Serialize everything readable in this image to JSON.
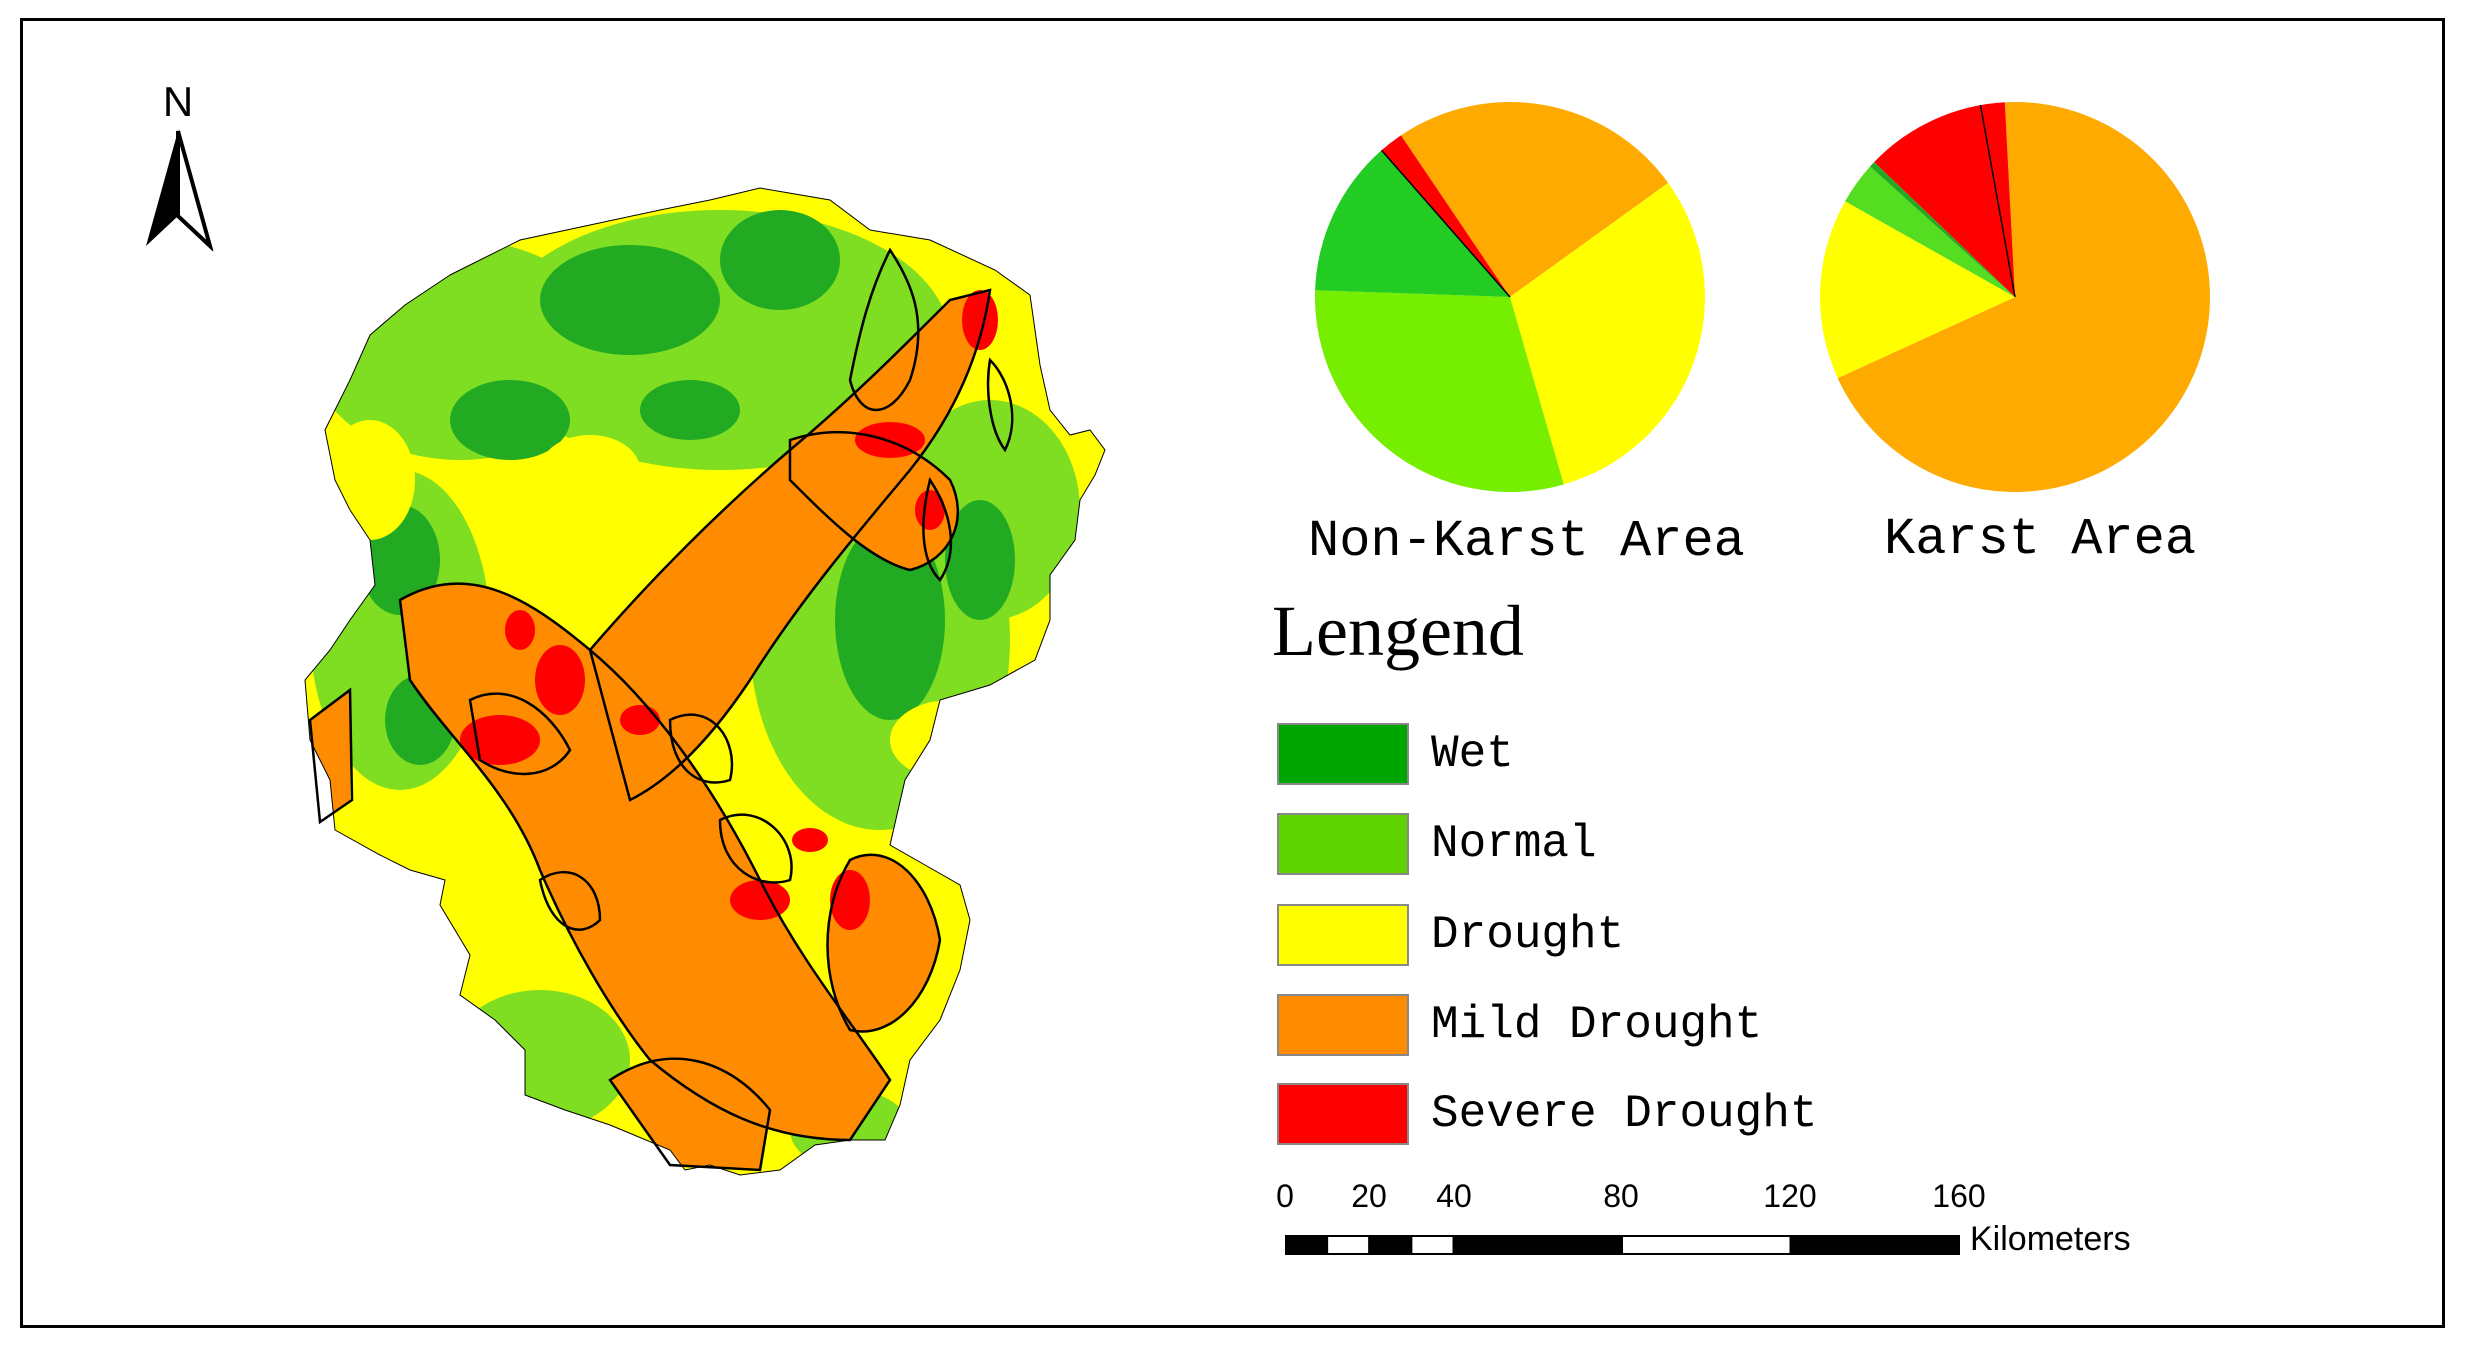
{
  "north_arrow": {
    "letter": "N"
  },
  "pies": [
    {
      "label": "Non-Karst Area",
      "slices": [
        {
          "class": "Mild Drought",
          "color": "#FFAA00",
          "fraction": 0.245
        },
        {
          "class": "Drought",
          "color": "#FFFF00",
          "fraction": 0.305
        },
        {
          "class": "Normal",
          "color": "#76EE00",
          "fraction": 0.3
        },
        {
          "class": "Wet",
          "color": "#22CC22",
          "fraction": 0.13
        },
        {
          "class": "Severe Drought",
          "color": "#FF0000",
          "fraction": 0.02
        }
      ]
    },
    {
      "label": "Karst Area",
      "slices": [
        {
          "class": "Mild Drought",
          "color": "#FFAA00",
          "fraction": 0.69
        },
        {
          "class": "Drought",
          "color": "#FFFF00",
          "fraction": 0.15
        },
        {
          "class": "Normal",
          "color": "#55DD22",
          "fraction": 0.035
        },
        {
          "class": "Wet",
          "color": "#22AA22",
          "fraction": 0.005
        },
        {
          "class": "Severe Drought",
          "color": "#FF0000",
          "fraction": 0.12
        }
      ]
    }
  ],
  "legend": {
    "title": "Lengend",
    "items": [
      {
        "label": "Wet",
        "color": "#00A600"
      },
      {
        "label": "Normal",
        "color": "#5FD300"
      },
      {
        "label": "Drought",
        "color": "#FFFF00"
      },
      {
        "label": "Mild Drought",
        "color": "#FF8C00"
      },
      {
        "label": "Severe Drought",
        "color": "#FF0000"
      }
    ]
  },
  "scale_bar": {
    "ticks": [
      "0",
      "20",
      "40",
      "80",
      "120",
      "160"
    ],
    "tick_values": [
      0,
      20,
      40,
      80,
      120,
      160
    ],
    "units": "Kilometers"
  },
  "map_colors": {
    "wet": "#22AA22",
    "normal": "#7FDD22",
    "drought": "#FFFF00",
    "mild": "#FF8C00",
    "severe": "#FF0000",
    "karst_outline": "#000000"
  }
}
